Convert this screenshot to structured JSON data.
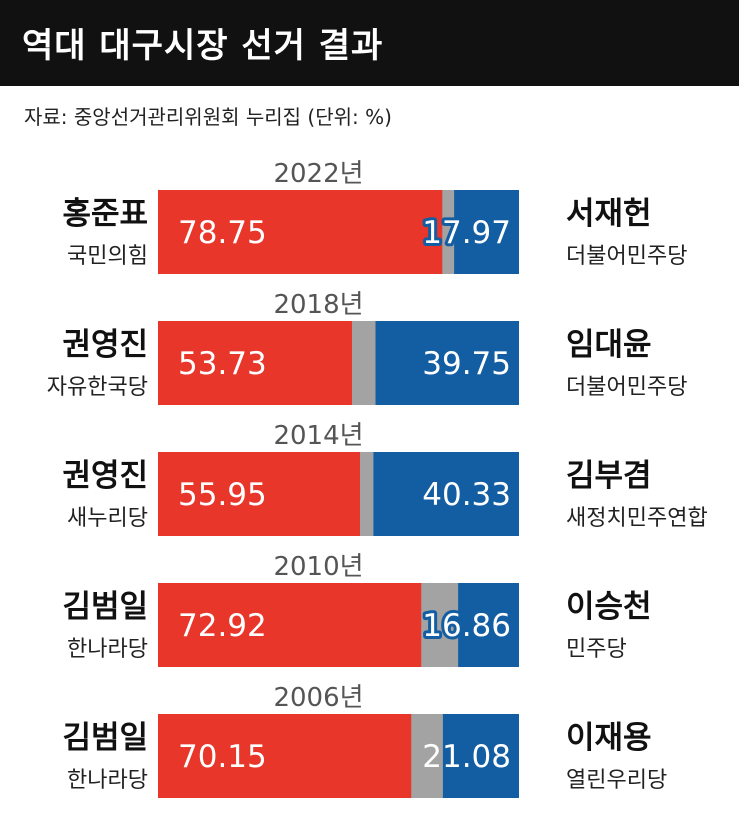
{
  "title": "역대 대구시장 선거 결과",
  "source": "자료: 중앙선거관리위원회 누리집  (단위: %)",
  "colors": {
    "conservative": "#e8362b",
    "other": "#a3a3a3",
    "democratic": "#135ea3",
    "year_text": "#555555",
    "label_text": "#111111"
  },
  "chart_data": {
    "type": "bar",
    "stacked": true,
    "orientation": "horizontal",
    "scale_max": 100,
    "rows": [
      {
        "year": "2022년",
        "left_name": "홍준표",
        "left_party": "국민의힘",
        "left_value": 78.75,
        "right_name": "서재헌",
        "right_party": "더불어민주당",
        "right_value": 17.97
      },
      {
        "year": "2018년",
        "left_name": "권영진",
        "left_party": "자유한국당",
        "left_value": 53.73,
        "right_name": "임대윤",
        "right_party": "더불어민주당",
        "right_value": 39.75
      },
      {
        "year": "2014년",
        "left_name": "권영진",
        "left_party": "새누리당",
        "left_value": 55.95,
        "right_name": "김부겸",
        "right_party": "새정치민주연합",
        "right_value": 40.33
      },
      {
        "year": "2010년",
        "left_name": "김범일",
        "left_party": "한나라당",
        "left_value": 72.92,
        "right_name": "이승천",
        "right_party": "민주당",
        "right_value": 16.86
      },
      {
        "year": "2006년",
        "left_name": "김범일",
        "left_party": "한나라당",
        "left_value": 70.15,
        "right_name": "이재용",
        "right_party": "열린우리당",
        "right_value": 21.08
      }
    ]
  }
}
